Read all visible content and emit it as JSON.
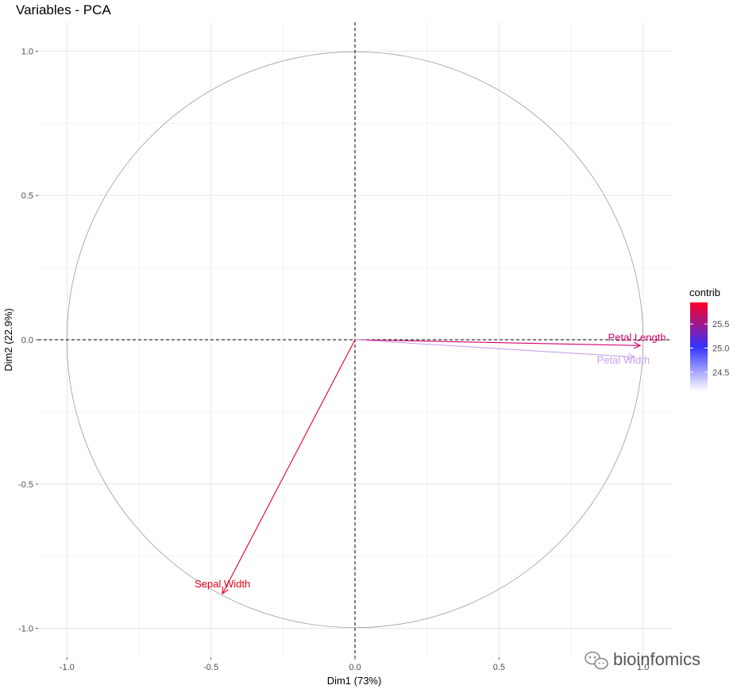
{
  "chart_data": {
    "type": "scatter",
    "title": "Variables - PCA",
    "xlabel": "Dim1 (73%)",
    "ylabel": "Dim2 (22.9%)",
    "xlim": [
      -1.1,
      1.1
    ],
    "ylim": [
      -1.1,
      1.1
    ],
    "x_ticks": [
      -1.0,
      -0.5,
      0.0,
      0.5,
      1.0
    ],
    "y_ticks": [
      -1.0,
      -0.5,
      0.0,
      0.5,
      1.0
    ],
    "x_tick_labels": [
      "-1.0",
      "-0.5",
      "0.0",
      "0.5",
      "1.0"
    ],
    "y_tick_labels": [
      "-1.0",
      "-0.5",
      "0.0",
      "0.5",
      "1.0"
    ],
    "grid": true,
    "correlation_circle": true,
    "variables": [
      {
        "name": "Petal Length",
        "x": 0.99,
        "y": -0.02,
        "contrib": 25.7,
        "color": "#d4006a"
      },
      {
        "name": "Petal Width",
        "x": 0.97,
        "y": -0.06,
        "contrib": 24.2,
        "color": "#c9a3f0"
      },
      {
        "name": "Sepal Width",
        "x": -0.46,
        "y": -0.88,
        "contrib": 25.9,
        "color": "#e8001c"
      }
    ],
    "legend": {
      "title": "contrib",
      "position": "right",
      "ticks": [
        25.5,
        25.0,
        24.5
      ],
      "tick_labels": [
        "25.5",
        "25.0",
        "24.5"
      ],
      "range": [
        24.1,
        25.95
      ],
      "gradient": [
        "#ffffff",
        "#3333ff",
        "#ff0022"
      ]
    }
  },
  "watermark": {
    "icon": "wechat-icon",
    "text": "bioinfomics"
  }
}
